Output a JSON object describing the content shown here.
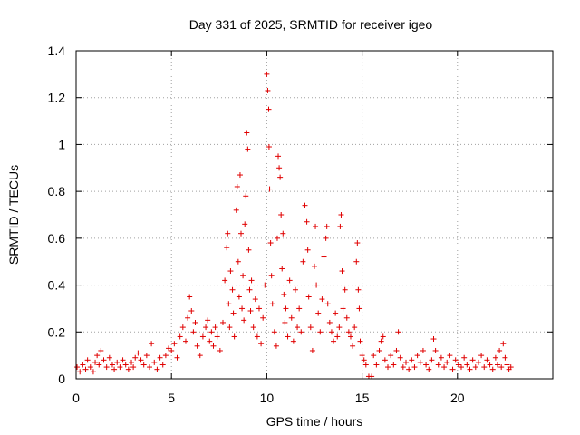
{
  "chart_data": {
    "type": "scatter",
    "title": "Day 331 of 2025, SRMTID for receiver igeo",
    "xlabel": "GPS time / hours",
    "ylabel": "SRMTID / TECUs",
    "xlim": [
      0,
      25
    ],
    "ylim": [
      0,
      1.4
    ],
    "xticks": [
      0,
      5,
      10,
      15,
      20
    ],
    "xtick_labels": [
      "0",
      "5",
      "10",
      "15",
      "20"
    ],
    "yticks": [
      0,
      0.2,
      0.4,
      0.6,
      0.8,
      1,
      1.2,
      1.4
    ],
    "ytick_labels": [
      "0",
      "0.2",
      "0.4",
      "0.6",
      "0.8",
      "1",
      "1.2",
      "1.4"
    ],
    "grid": true,
    "marker": "+",
    "series": [
      {
        "name": "SRMTID",
        "color": "#e00000",
        "points": [
          [
            0.05,
            0.05
          ],
          [
            0.2,
            0.03
          ],
          [
            0.35,
            0.06
          ],
          [
            0.5,
            0.04
          ],
          [
            0.6,
            0.08
          ],
          [
            0.75,
            0.05
          ],
          [
            0.9,
            0.03
          ],
          [
            1.0,
            0.07
          ],
          [
            1.1,
            0.1
          ],
          [
            1.2,
            0.06
          ],
          [
            1.3,
            0.12
          ],
          [
            1.45,
            0.08
          ],
          [
            1.6,
            0.05
          ],
          [
            1.75,
            0.09
          ],
          [
            1.9,
            0.06
          ],
          [
            2.0,
            0.04
          ],
          [
            2.15,
            0.07
          ],
          [
            2.3,
            0.05
          ],
          [
            2.45,
            0.08
          ],
          [
            2.6,
            0.06
          ],
          [
            2.75,
            0.04
          ],
          [
            2.9,
            0.07
          ],
          [
            3.0,
            0.05
          ],
          [
            3.1,
            0.09
          ],
          [
            3.25,
            0.11
          ],
          [
            3.4,
            0.08
          ],
          [
            3.55,
            0.06
          ],
          [
            3.7,
            0.1
          ],
          [
            3.85,
            0.05
          ],
          [
            3.95,
            0.15
          ],
          [
            4.1,
            0.07
          ],
          [
            4.25,
            0.04
          ],
          [
            4.4,
            0.09
          ],
          [
            4.55,
            0.06
          ],
          [
            4.7,
            0.1
          ],
          [
            4.85,
            0.13
          ],
          [
            5.0,
            0.12
          ],
          [
            5.15,
            0.15
          ],
          [
            5.3,
            0.09
          ],
          [
            5.45,
            0.18
          ],
          [
            5.6,
            0.22
          ],
          [
            5.75,
            0.16
          ],
          [
            5.85,
            0.26
          ],
          [
            5.95,
            0.35
          ],
          [
            6.05,
            0.29
          ],
          [
            6.15,
            0.2
          ],
          [
            6.25,
            0.24
          ],
          [
            6.35,
            0.14
          ],
          [
            6.5,
            0.1
          ],
          [
            6.65,
            0.18
          ],
          [
            6.8,
            0.22
          ],
          [
            6.9,
            0.25
          ],
          [
            7.0,
            0.16
          ],
          [
            7.1,
            0.2
          ],
          [
            7.2,
            0.14
          ],
          [
            7.3,
            0.22
          ],
          [
            7.4,
            0.18
          ],
          [
            7.55,
            0.12
          ],
          [
            7.7,
            0.24
          ],
          [
            7.8,
            0.42
          ],
          [
            7.9,
            0.56
          ],
          [
            7.95,
            0.62
          ],
          [
            8.0,
            0.32
          ],
          [
            8.05,
            0.22
          ],
          [
            8.1,
            0.46
          ],
          [
            8.2,
            0.38
          ],
          [
            8.25,
            0.28
          ],
          [
            8.3,
            0.18
          ],
          [
            8.4,
            0.72
          ],
          [
            8.45,
            0.82
          ],
          [
            8.5,
            0.5
          ],
          [
            8.55,
            0.35
          ],
          [
            8.6,
            0.87
          ],
          [
            8.65,
            0.62
          ],
          [
            8.7,
            0.3
          ],
          [
            8.75,
            0.44
          ],
          [
            8.8,
            0.25
          ],
          [
            8.85,
            0.66
          ],
          [
            8.9,
            0.78
          ],
          [
            8.95,
            1.05
          ],
          [
            9.0,
            0.98
          ],
          [
            9.05,
            0.55
          ],
          [
            9.1,
            0.38
          ],
          [
            9.15,
            0.29
          ],
          [
            9.2,
            0.42
          ],
          [
            9.3,
            0.22
          ],
          [
            9.4,
            0.34
          ],
          [
            9.5,
            0.18
          ],
          [
            9.6,
            0.3
          ],
          [
            9.7,
            0.15
          ],
          [
            9.8,
            0.26
          ],
          [
            9.9,
            0.4
          ],
          [
            10.0,
            1.3
          ],
          [
            10.05,
            1.23
          ],
          [
            10.1,
            1.15
          ],
          [
            10.12,
            0.99
          ],
          [
            10.15,
            0.81
          ],
          [
            10.2,
            0.58
          ],
          [
            10.25,
            0.44
          ],
          [
            10.3,
            0.32
          ],
          [
            10.4,
            0.2
          ],
          [
            10.5,
            0.14
          ],
          [
            10.55,
            0.6
          ],
          [
            10.6,
            0.95
          ],
          [
            10.65,
            0.9
          ],
          [
            10.7,
            0.86
          ],
          [
            10.75,
            0.7
          ],
          [
            10.8,
            0.47
          ],
          [
            10.85,
            0.62
          ],
          [
            10.9,
            0.36
          ],
          [
            10.95,
            0.24
          ],
          [
            11.0,
            0.3
          ],
          [
            11.1,
            0.18
          ],
          [
            11.2,
            0.42
          ],
          [
            11.3,
            0.26
          ],
          [
            11.4,
            0.16
          ],
          [
            11.5,
            0.38
          ],
          [
            11.6,
            0.22
          ],
          [
            11.7,
            0.3
          ],
          [
            11.8,
            0.2
          ],
          [
            11.9,
            0.5
          ],
          [
            12.0,
            0.74
          ],
          [
            12.1,
            0.67
          ],
          [
            12.15,
            0.55
          ],
          [
            12.2,
            0.35
          ],
          [
            12.3,
            0.22
          ],
          [
            12.4,
            0.12
          ],
          [
            12.5,
            0.48
          ],
          [
            12.55,
            0.65
          ],
          [
            12.6,
            0.4
          ],
          [
            12.7,
            0.28
          ],
          [
            12.8,
            0.2
          ],
          [
            12.9,
            0.34
          ],
          [
            13.0,
            0.52
          ],
          [
            13.1,
            0.6
          ],
          [
            13.15,
            0.65
          ],
          [
            13.2,
            0.32
          ],
          [
            13.3,
            0.24
          ],
          [
            13.4,
            0.2
          ],
          [
            13.5,
            0.16
          ],
          [
            13.6,
            0.28
          ],
          [
            13.7,
            0.18
          ],
          [
            13.8,
            0.22
          ],
          [
            13.85,
            0.65
          ],
          [
            13.9,
            0.7
          ],
          [
            13.95,
            0.46
          ],
          [
            14.0,
            0.3
          ],
          [
            14.1,
            0.38
          ],
          [
            14.2,
            0.26
          ],
          [
            14.3,
            0.2
          ],
          [
            14.4,
            0.18
          ],
          [
            14.5,
            0.14
          ],
          [
            14.6,
            0.22
          ],
          [
            14.7,
            0.5
          ],
          [
            14.75,
            0.58
          ],
          [
            14.8,
            0.38
          ],
          [
            14.85,
            0.3
          ],
          [
            14.9,
            0.16
          ],
          [
            15.0,
            0.1
          ],
          [
            15.1,
            0.08
          ],
          [
            15.2,
            0.06
          ],
          [
            15.35,
            0.01
          ],
          [
            15.5,
            0.01
          ],
          [
            15.6,
            0.1
          ],
          [
            15.75,
            0.06
          ],
          [
            15.9,
            0.12
          ],
          [
            16.0,
            0.16
          ],
          [
            16.1,
            0.18
          ],
          [
            16.2,
            0.08
          ],
          [
            16.35,
            0.05
          ],
          [
            16.5,
            0.1
          ],
          [
            16.65,
            0.06
          ],
          [
            16.8,
            0.12
          ],
          [
            16.9,
            0.2
          ],
          [
            17.0,
            0.09
          ],
          [
            17.15,
            0.05
          ],
          [
            17.3,
            0.07
          ],
          [
            17.45,
            0.04
          ],
          [
            17.6,
            0.08
          ],
          [
            17.75,
            0.05
          ],
          [
            17.9,
            0.1
          ],
          [
            18.05,
            0.07
          ],
          [
            18.2,
            0.12
          ],
          [
            18.35,
            0.06
          ],
          [
            18.5,
            0.04
          ],
          [
            18.65,
            0.08
          ],
          [
            18.75,
            0.17
          ],
          [
            18.85,
            0.12
          ],
          [
            19.0,
            0.06
          ],
          [
            19.15,
            0.09
          ],
          [
            19.3,
            0.05
          ],
          [
            19.45,
            0.07
          ],
          [
            19.6,
            0.1
          ],
          [
            19.75,
            0.04
          ],
          [
            19.9,
            0.08
          ],
          [
            20.05,
            0.06
          ],
          [
            20.2,
            0.05
          ],
          [
            20.35,
            0.09
          ],
          [
            20.5,
            0.06
          ],
          [
            20.65,
            0.04
          ],
          [
            20.8,
            0.08
          ],
          [
            20.95,
            0.05
          ],
          [
            21.1,
            0.07
          ],
          [
            21.25,
            0.1
          ],
          [
            21.4,
            0.05
          ],
          [
            21.55,
            0.08
          ],
          [
            21.7,
            0.06
          ],
          [
            21.85,
            0.04
          ],
          [
            22.0,
            0.09
          ],
          [
            22.1,
            0.06
          ],
          [
            22.2,
            0.12
          ],
          [
            22.3,
            0.05
          ],
          [
            22.4,
            0.15
          ],
          [
            22.5,
            0.09
          ],
          [
            22.6,
            0.06
          ],
          [
            22.7,
            0.04
          ],
          [
            22.8,
            0.05
          ]
        ]
      }
    ]
  }
}
